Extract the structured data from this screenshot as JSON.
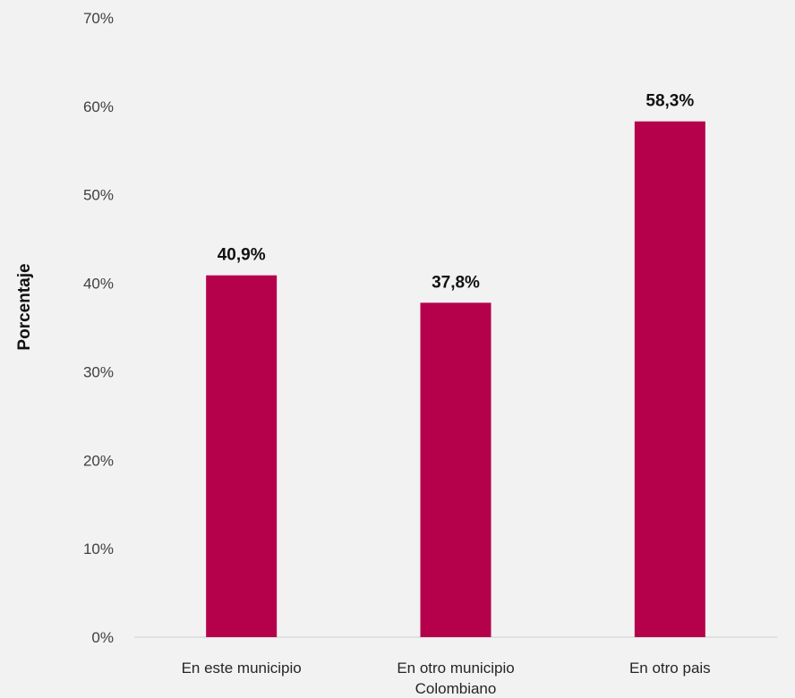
{
  "chart_data": {
    "type": "bar",
    "categories": [
      [
        "En este municipio"
      ],
      [
        "En otro municipio",
        "Colombiano"
      ],
      [
        "En otro pais"
      ]
    ],
    "values": [
      40.9,
      37.8,
      58.3
    ],
    "data_labels": [
      "40,9%",
      "37,8%",
      "58,3%"
    ],
    "ylabel": "Porcentaje",
    "xlabel": "",
    "ylim": [
      0,
      70
    ],
    "yticks": [
      "0%",
      "10%",
      "20%",
      "30%",
      "40%",
      "50%",
      "60%",
      "70%"
    ],
    "bar_color": "#b5004b",
    "axis_color": "#d9d9d9",
    "background": "#f2f2f2",
    "grid": false,
    "legend": "none"
  }
}
